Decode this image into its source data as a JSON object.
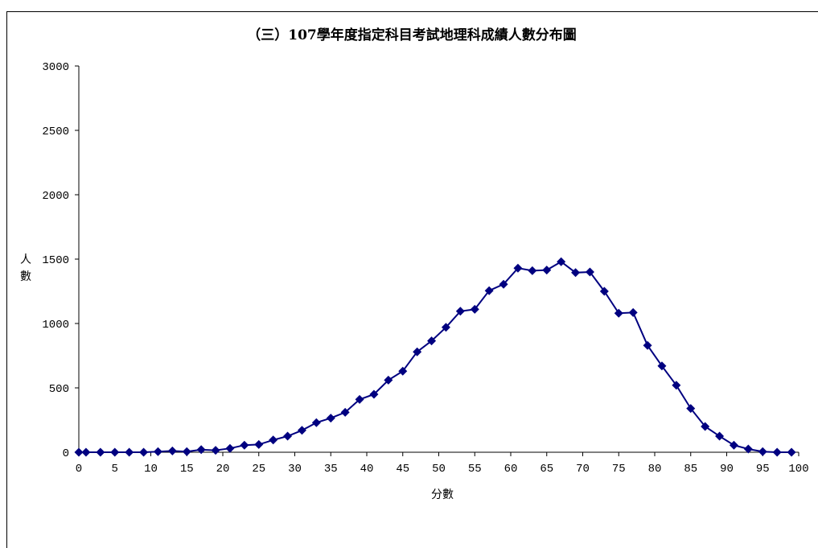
{
  "chart_data": {
    "type": "line",
    "title": "（三）107學年度指定科目考試地理科成績人數分布圖",
    "xlabel": "分數",
    "ylabel": "人數",
    "xlim": [
      0,
      100
    ],
    "ylim": [
      0,
      3000
    ],
    "x_ticks": [
      0,
      5,
      10,
      15,
      20,
      25,
      30,
      35,
      40,
      45,
      50,
      55,
      60,
      65,
      70,
      75,
      80,
      85,
      90,
      95,
      100
    ],
    "y_ticks": [
      0,
      500,
      1000,
      1500,
      2000,
      2500,
      3000
    ],
    "grid": false,
    "colors": {
      "series": "#000080",
      "axis": "#000000"
    },
    "series": [
      {
        "x": [
          0,
          1,
          3,
          5,
          7,
          9,
          11,
          13,
          15,
          17,
          19,
          21,
          23,
          25,
          27,
          29,
          31,
          33,
          35,
          37,
          39,
          41,
          43,
          45,
          47,
          49,
          51,
          53,
          55,
          57,
          59,
          61,
          63,
          65,
          67,
          69,
          71,
          73,
          75,
          77,
          79,
          81,
          83,
          85,
          87,
          89,
          91,
          93,
          95,
          97,
          99
        ],
        "values": [
          0,
          0,
          0,
          0,
          0,
          0,
          5,
          10,
          5,
          20,
          15,
          30,
          55,
          60,
          95,
          125,
          170,
          230,
          265,
          310,
          410,
          450,
          560,
          630,
          780,
          865,
          970,
          1095,
          1110,
          1255,
          1305,
          1430,
          1410,
          1415,
          1480,
          1395,
          1400,
          1250,
          1080,
          1085,
          830,
          670,
          520,
          340,
          200,
          125,
          55,
          25,
          5,
          0,
          0
        ]
      }
    ]
  }
}
